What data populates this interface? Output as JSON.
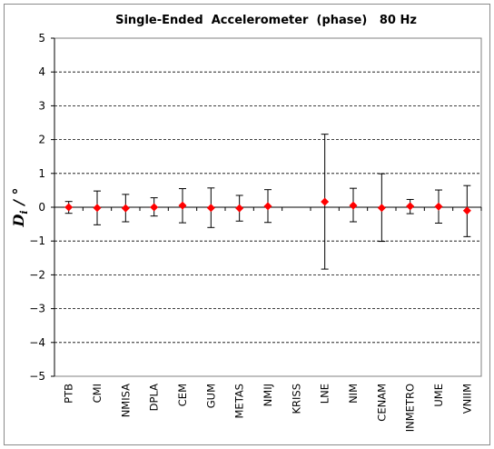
{
  "chart_data": {
    "type": "scatter",
    "title": "Single-Ended  Accelerometer  (phase)   80 Hz",
    "ylabel": "D_i / °",
    "ylabel_main": "D",
    "ylabel_sub": "i",
    "ylabel_unit": " / °",
    "xlabel": "",
    "ylim": [
      -5,
      5
    ],
    "yticks": [
      5,
      4,
      3,
      2,
      1,
      0,
      -1,
      -2,
      -3,
      -4,
      -5
    ],
    "ytick_labels": [
      "5",
      "4",
      "3",
      "2",
      "1",
      "0",
      "−1",
      "−2",
      "−3",
      "−4",
      "−5"
    ],
    "grid": "horizontal dashed",
    "marker_color": "#ff0000",
    "errorbar_color": "#000000",
    "categories": [
      "PTB",
      "CMI",
      "NMISA",
      "DPLA",
      "CEM",
      "GUM",
      "METAS",
      "NMIJ",
      "KRISS",
      "LNE",
      "NIM",
      "CENAM",
      "INMETRO",
      "UME",
      "VNIIM"
    ],
    "values": [
      0.0,
      -0.02,
      -0.03,
      0.0,
      0.05,
      -0.02,
      -0.03,
      0.03,
      null,
      0.16,
      0.05,
      -0.02,
      0.03,
      0.02,
      -0.1
    ],
    "error_low": [
      -0.18,
      -0.52,
      -0.43,
      -0.26,
      -0.46,
      -0.6,
      -0.41,
      -0.45,
      null,
      -1.83,
      -0.43,
      -1.01,
      -0.19,
      -0.47,
      -0.87
    ],
    "error_high": [
      0.17,
      0.48,
      0.38,
      0.28,
      0.55,
      0.57,
      0.35,
      0.52,
      null,
      2.16,
      0.56,
      0.99,
      0.23,
      0.51,
      0.64
    ]
  }
}
